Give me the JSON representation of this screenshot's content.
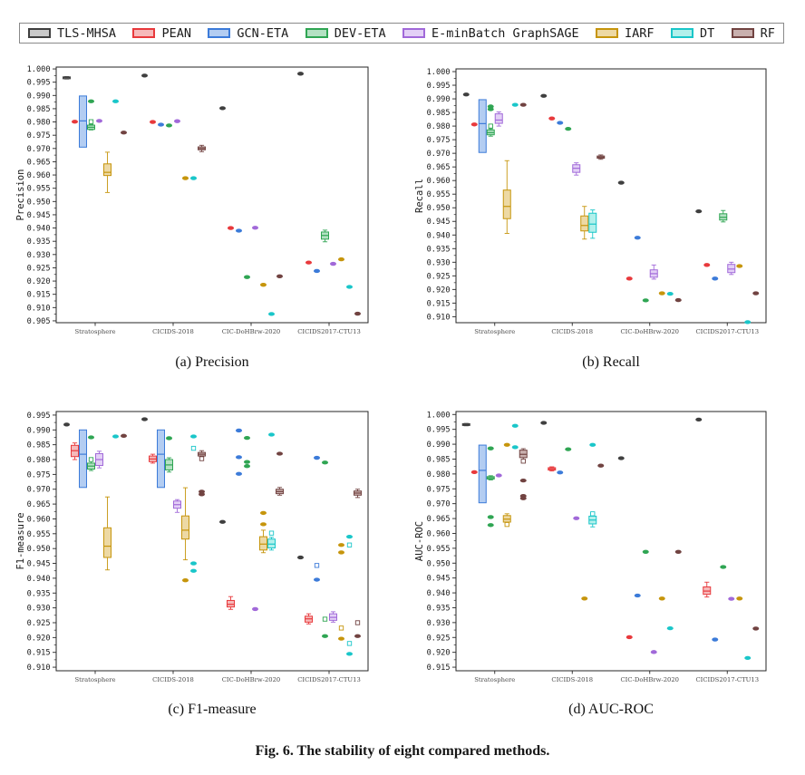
{
  "figure": {
    "caption": "Fig. 6. The stability of eight compared methods."
  },
  "legend": {
    "items": [
      {
        "label": "TLS-MHSA",
        "fill": "#c9c9c9",
        "edge": "#3f3f3f"
      },
      {
        "label": "PEAN",
        "fill": "#f6b9ba",
        "edge": "#e8393c"
      },
      {
        "label": "GCN-ETA",
        "fill": "#b3cdf2",
        "edge": "#3c7bd9"
      },
      {
        "label": "DEV-ETA",
        "fill": "#b4e1c3",
        "edge": "#2fa553"
      },
      {
        "label": "E-minBatch GraphSAGE",
        "fill": "#e3d0f6",
        "edge": "#a169d9"
      },
      {
        "label": "IARF",
        "fill": "#edd9a4",
        "edge": "#c6950c"
      },
      {
        "label": "DT",
        "fill": "#b2f0eb",
        "edge": "#1ac6c9"
      },
      {
        "label": "RF",
        "fill": "#c9b0ae",
        "edge": "#714341"
      }
    ]
  },
  "categories": [
    "Stratosphere",
    "CICIDS-2018",
    "CIC-DoHBrw-2020",
    "CICIDS2017-CTU13"
  ],
  "chart_data": [
    {
      "type": "box",
      "caption": "(a) Precision",
      "ylabel": "Precision",
      "ytick_min": 0.905,
      "ytick_max": 1.0,
      "ytick_step": 0.005,
      "ylim": [
        0.9043,
        1.0007
      ],
      "legend_position": "top",
      "grid": false,
      "categories": [
        "Stratosphere",
        "CICIDS-2018",
        "CIC-DoHBrw-2020",
        "CICIDS2017-CTU13"
      ],
      "groups": [
        [
          {
            "box": [
              0.9962,
              0.9963,
              0.9967,
              0.997,
              0.9971
            ]
          },
          {
            "pt": 0.9801
          },
          {
            "box": [
              0.9705,
              0.9705,
              0.9804,
              0.9898,
              0.9898
            ]
          },
          {
            "box": [
              0.977,
              0.9772,
              0.978,
              0.9788,
              0.979
            ],
            "pts": [
              0.9878
            ],
            "sq": [
              0.9801
            ]
          },
          {
            "pt": 0.9804
          },
          {
            "box": [
              0.9534,
              0.9598,
              0.961,
              0.9642,
              0.9686
            ]
          },
          {
            "pt": 0.9878
          },
          {
            "pt": 0.976
          }
        ],
        [
          {
            "pt": 0.9975
          },
          {
            "pt": 0.98
          },
          {
            "pt": 0.979
          },
          {
            "pt": 0.9787
          },
          {
            "pt": 0.9803
          },
          {
            "pt": 0.9588
          },
          {
            "pt": 0.9588
          },
          {
            "box": [
              0.9688,
              0.9695,
              0.97,
              0.9706,
              0.9712
            ]
          }
        ],
        [
          {
            "pt": 0.9852
          },
          {
            "pt": 0.94
          },
          {
            "pt": 0.939
          },
          {
            "pt": 0.9215
          },
          {
            "pt": 0.9401
          },
          {
            "pt": 0.9186
          },
          {
            "pt": 0.9076
          },
          {
            "pt": 0.9218
          }
        ],
        [
          {
            "pt": 0.9982
          },
          {
            "pt": 0.927
          },
          {
            "pt": 0.9238
          },
          {
            "box": [
              0.9348,
              0.9358,
              0.9372,
              0.9385,
              0.9392
            ]
          },
          {
            "pt": 0.9265
          },
          {
            "pt": 0.9282
          },
          {
            "pt": 0.9178
          },
          {
            "pt": 0.9077
          }
        ]
      ]
    },
    {
      "type": "box",
      "caption": "(b) Recall",
      "ylabel": "Recall",
      "ytick_min": 0.91,
      "ytick_max": 1.0,
      "ytick_step": 0.005,
      "ylim": [
        0.9078,
        1.001
      ],
      "legend_position": "top",
      "grid": false,
      "categories": [
        "Stratosphere",
        "CICIDS-2018",
        "CIC-DoHBrw-2020",
        "CICIDS2017-CTU13"
      ],
      "groups": [
        [
          {
            "pt": 0.9916
          },
          {
            "pt": 0.9806
          },
          {
            "box": [
              0.9703,
              0.9703,
              0.9809,
              0.9897,
              0.9897
            ]
          },
          {
            "box": [
              0.9763,
              0.9768,
              0.9776,
              0.9786,
              0.979
            ],
            "pts": [
              0.9872,
              0.9862
            ],
            "sq": [
              0.98
            ]
          },
          {
            "box": [
              0.98,
              0.981,
              0.9822,
              0.9845,
              0.9852
            ]
          },
          {
            "box": [
              0.9406,
              0.946,
              0.9505,
              0.9565,
              0.9673
            ]
          },
          {
            "pt": 0.9878
          },
          {
            "pt": 0.9878
          }
        ],
        [
          {
            "pt": 0.9911
          },
          {
            "pt": 0.9828
          },
          {
            "pt": 0.9812
          },
          {
            "pt": 0.979
          },
          {
            "box": [
              0.962,
              0.963,
              0.9645,
              0.9658,
              0.9665
            ]
          },
          {
            "box": [
              0.9385,
              0.9415,
              0.9435,
              0.947,
              0.9505
            ]
          },
          {
            "box": [
              0.9388,
              0.941,
              0.944,
              0.948,
              0.9492
            ]
          },
          {
            "box": [
              0.9678,
              0.9682,
              0.9686,
              0.969,
              0.9694
            ]
          }
        ],
        [
          {
            "pt": 0.9592
          },
          {
            "pt": 0.924
          },
          {
            "pt": 0.939
          },
          {
            "pt": 0.916
          },
          {
            "box": [
              0.9238,
              0.9245,
              0.9258,
              0.9272,
              0.929
            ]
          },
          {
            "pt": 0.9186
          },
          {
            "pt": 0.9184
          },
          {
            "pt": 0.9161
          }
        ],
        [
          {
            "pt": 0.9487
          },
          {
            "pt": 0.929
          },
          {
            "pt": 0.924
          },
          {
            "box": [
              0.9448,
              0.9455,
              0.9465,
              0.9478,
              0.949
            ]
          },
          {
            "box": [
              0.9255,
              0.9262,
              0.9275,
              0.9292,
              0.93
            ]
          },
          {
            "pt": 0.9286
          },
          {
            "pt": 0.908
          },
          {
            "pt": 0.9186
          }
        ]
      ]
    },
    {
      "type": "box",
      "caption": "(c) F1-measure",
      "ylabel": "F1-measure",
      "ytick_min": 0.91,
      "ytick_max": 0.995,
      "ytick_step": 0.005,
      "ylim": [
        0.9088,
        0.9962
      ],
      "legend_position": "top",
      "grid": false,
      "categories": [
        "Stratosphere",
        "CICIDS-2018",
        "CIC-DoHBrw-2020",
        "CICIDS2017-CTU13"
      ],
      "groups": [
        [
          {
            "pt": 0.9918
          },
          {
            "box": [
              0.98,
              0.981,
              0.983,
              0.9848,
              0.9856
            ]
          },
          {
            "box": [
              0.9706,
              0.9706,
              0.9818,
              0.99,
              0.99
            ]
          },
          {
            "box": [
              0.9763,
              0.9768,
              0.9778,
              0.9788,
              0.9795
            ],
            "pts": [
              0.9875
            ],
            "sq": [
              0.98
            ]
          },
          {
            "box": [
              0.9772,
              0.978,
              0.98,
              0.982,
              0.9828
            ]
          },
          {
            "box": [
              0.9428,
              0.947,
              0.9508,
              0.957,
              0.9674
            ]
          },
          {
            "pt": 0.9878
          },
          {
            "pt": 0.988
          }
        ],
        [
          {
            "pt": 0.9936
          },
          {
            "box": [
              0.9788,
              0.9793,
              0.9802,
              0.9812,
              0.9818
            ]
          },
          {
            "box": [
              0.9706,
              0.9706,
              0.9818,
              0.99,
              0.99
            ]
          },
          {
            "box": [
              0.9758,
              0.9765,
              0.9782,
              0.98,
              0.9806
            ],
            "pts": [
              0.9872
            ]
          },
          {
            "box": [
              0.9622,
              0.9636,
              0.9648,
              0.966,
              0.9665
            ]
          },
          {
            "box": [
              0.9462,
              0.9532,
              0.9562,
              0.961,
              0.9705
            ],
            "pts": [
              0.9393
            ]
          },
          {
            "pts": [
              0.9878,
              0.945,
              0.9425
            ],
            "sq": [
              0.9838
            ]
          },
          {
            "box": [
              0.9808,
              0.9812,
              0.9818,
              0.9824,
              0.983
            ],
            "pts": [
              0.9692,
              0.9683
            ],
            "sq": [
              0.9803
            ]
          }
        ],
        [
          {
            "pt": 0.959
          },
          {
            "box": [
              0.9295,
              0.9303,
              0.9312,
              0.9325,
              0.9338
            ]
          },
          {
            "pts": [
              0.9898,
              0.9808,
              0.9752
            ]
          },
          {
            "pts": [
              0.9873,
              0.9792,
              0.9778
            ]
          },
          {
            "pt": 0.9296
          },
          {
            "box": [
              0.9486,
              0.9495,
              0.9515,
              0.954,
              0.9562
            ],
            "pts": [
              0.962,
              0.9582
            ]
          },
          {
            "box": [
              0.9495,
              0.9502,
              0.9515,
              0.9532,
              0.9538
            ],
            "pts": [
              0.9884
            ],
            "sq": [
              0.9552
            ]
          },
          {
            "box": [
              0.968,
              0.9685,
              0.9692,
              0.97,
              0.9706
            ],
            "pts": [
              0.982
            ]
          }
        ],
        [
          {
            "pt": 0.947
          },
          {
            "box": [
              0.9246,
              0.9252,
              0.9263,
              0.9272,
              0.928
            ]
          },
          {
            "pts": [
              0.9806,
              0.9395
            ],
            "sq": [
              0.9443
            ]
          },
          {
            "pts": [
              0.979,
              0.9205
            ],
            "sq": [
              0.9262
            ]
          },
          {
            "box": [
              0.9252,
              0.9258,
              0.9268,
              0.928,
              0.9287
            ]
          },
          {
            "pts": [
              0.9512,
              0.9487,
              0.9196
            ],
            "sq": [
              0.9232
            ]
          },
          {
            "pts": [
              0.954,
              0.9145
            ],
            "sq": [
              0.9512,
              0.918
            ]
          },
          {
            "box": [
              0.9672,
              0.968,
              0.9687,
              0.9694,
              0.97
            ],
            "pts": [
              0.9205
            ],
            "sq": [
              0.925
            ]
          }
        ]
      ]
    },
    {
      "type": "box",
      "caption": "(d) AUC-ROC",
      "ylabel": "AUC-ROC",
      "ytick_min": 0.915,
      "ytick_max": 1.0,
      "ytick_step": 0.005,
      "ylim": [
        0.9138,
        1.001
      ],
      "legend_position": "top",
      "grid": false,
      "categories": [
        "Stratosphere",
        "CICIDS-2018",
        "CIC-DoHBrw-2020",
        "CICIDS2017-CTU13"
      ],
      "groups": [
        [
          {
            "box": [
              0.9962,
              0.9963,
              0.9966,
              0.9969,
              0.997
            ]
          },
          {
            "pt": 0.9806
          },
          {
            "box": [
              0.9703,
              0.9703,
              0.9812,
              0.9897,
              0.9897
            ]
          },
          {
            "box": [
              0.978,
              0.9783,
              0.9787,
              0.9791,
              0.9794
            ],
            "pts": [
              0.9886,
              0.9655,
              0.9628
            ]
          },
          {
            "pt": 0.9795
          },
          {
            "box": [
              0.9632,
              0.9638,
              0.9648,
              0.966,
              0.9666
            ],
            "pts": [
              0.9898
            ],
            "sq": [
              0.963
            ]
          },
          {
            "pts": [
              0.9962,
              0.989
            ]
          },
          {
            "box": [
              0.9848,
              0.9855,
              0.9866,
              0.988,
              0.9885
            ],
            "pts": [
              0.9778,
              0.9726,
              0.9718
            ],
            "sq": [
              0.9843
            ]
          }
        ],
        [
          {
            "pt": 0.9972
          },
          {
            "box": [
              0.981,
              0.9813,
              0.9817,
              0.9821,
              0.9824
            ]
          },
          {
            "pt": 0.9805
          },
          {
            "pt": 0.9883
          },
          {
            "pt": 0.9651
          },
          {
            "pt": 0.9381
          },
          {
            "box": [
              0.9622,
              0.9632,
              0.9645,
              0.9658,
              0.9668
            ],
            "pts": [
              0.9898
            ],
            "sq": [
              0.9666
            ]
          },
          {
            "pt": 0.9828
          }
        ],
        [
          {
            "pt": 0.9853
          },
          {
            "pt": 0.9251
          },
          {
            "pt": 0.9391
          },
          {
            "pt": 0.9538
          },
          {
            "pt": 0.9201
          },
          {
            "pt": 0.9381
          },
          {
            "pt": 0.9281
          },
          {
            "pt": 0.9538
          }
        ],
        [
          {
            "pt": 0.9983
          },
          {
            "box": [
              0.9386,
              0.9395,
              0.9406,
              0.942,
              0.9436
            ]
          },
          {
            "pt": 0.9243
          },
          {
            "pt": 0.9487
          },
          {
            "pt": 0.938
          },
          {
            "pt": 0.9381
          },
          {
            "pt": 0.9181
          },
          {
            "pt": 0.928
          }
        ]
      ]
    }
  ]
}
